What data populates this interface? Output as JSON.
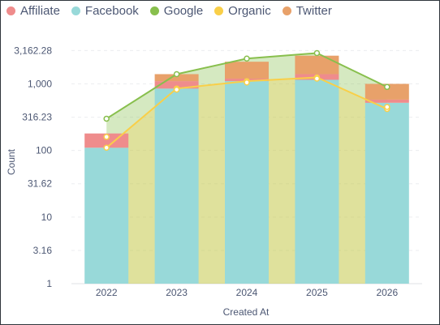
{
  "chart_data": {
    "type": "bar",
    "stacked": true,
    "y_scale": "log",
    "xlabel": "Created At",
    "ylabel": "Count",
    "categories": [
      "2022",
      "2023",
      "2024",
      "2025",
      "2026"
    ],
    "y_ticks": [
      "1",
      "3.16",
      "10",
      "31.62",
      "100",
      "316.23",
      "1,000",
      "3,162.28"
    ],
    "ylim": [
      1,
      5600
    ],
    "grid": true,
    "legend_position": "top-left",
    "bar_series": [
      {
        "name": "Facebook",
        "color": "#98d9d9",
        "values": [
          110,
          850,
          1100,
          1150,
          520
        ]
      },
      {
        "name": "Affiliate",
        "color": "#ef8c8c",
        "values": [
          70,
          250,
          100,
          250,
          60
        ]
      },
      {
        "name": "Twitter",
        "color": "#e8a16a",
        "values": [
          0,
          300,
          950,
          1250,
          420
        ]
      }
    ],
    "area_series": [
      {
        "name": "Google",
        "color": "#88bf4d",
        "values": [
          300,
          1400,
          2400,
          2900,
          900
        ]
      },
      {
        "name": "Organic",
        "color": "#f9cf48",
        "values": [
          110,
          850,
          1100,
          1250,
          420
        ]
      },
      {
        "name": "Organic",
        "color": "#f9cf48",
        "values": [
          160,
          820,
          1050,
          1200,
          450
        ],
        "hidden_line": true
      }
    ],
    "legend": [
      {
        "name": "Affiliate",
        "color": "#ef8c8c"
      },
      {
        "name": "Facebook",
        "color": "#98d9d9"
      },
      {
        "name": "Google",
        "color": "#88bf4d"
      },
      {
        "name": "Organic",
        "color": "#f9cf48"
      },
      {
        "name": "Twitter",
        "color": "#e8a16a"
      }
    ]
  }
}
